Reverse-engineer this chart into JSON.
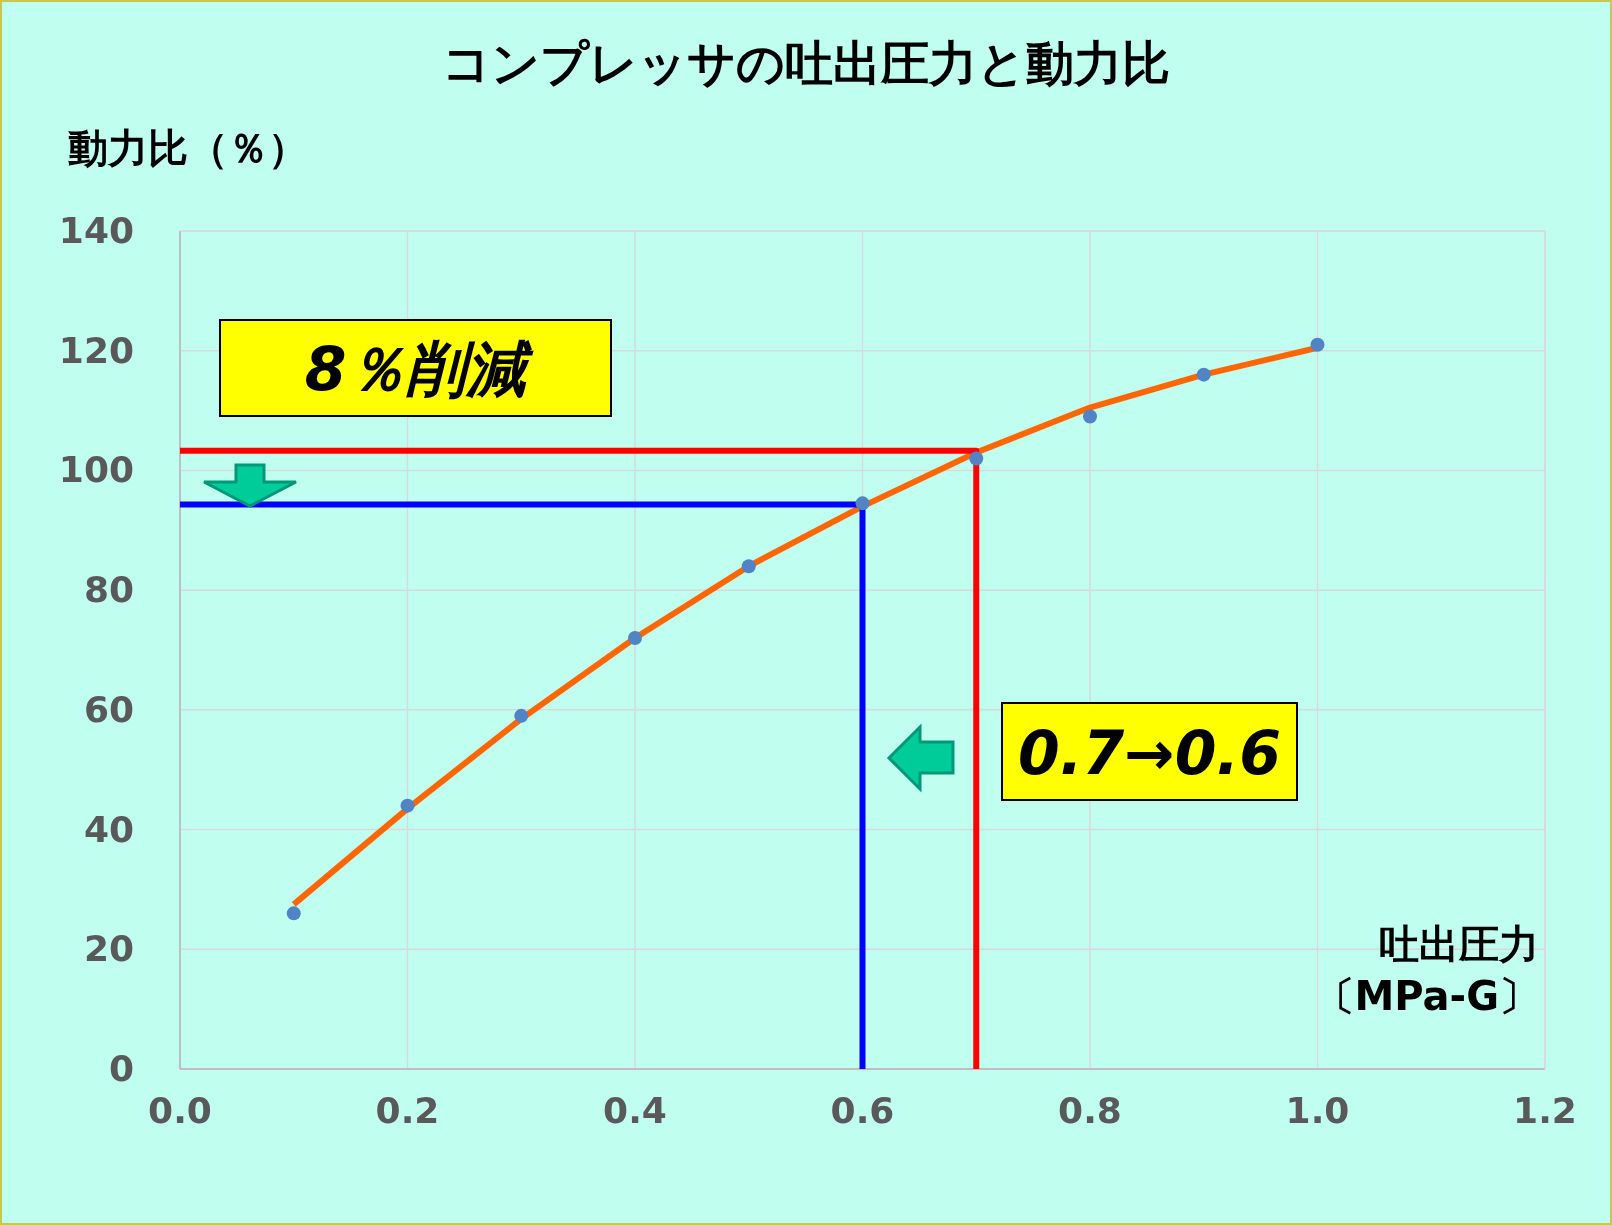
{
  "chart_data": {
    "type": "scatter",
    "title": "コンプレッサの吐出圧力と動力比",
    "ylabel": "動力比（％）",
    "xlabel": "吐出圧力〔MPa‐G〕",
    "xlim": [
      0,
      1.2
    ],
    "ylim": [
      0,
      140
    ],
    "xticks": [
      {
        "value": 0,
        "label": "0.0"
      },
      0.2,
      0.4,
      0.6,
      0.8,
      {
        "value": 1,
        "label": "1.0"
      },
      1.2
    ],
    "yticks": [
      0,
      20,
      40,
      60,
      80,
      100,
      120,
      140
    ],
    "grid": true,
    "marker": "circle",
    "series": [
      {
        "color": "#5283c4",
        "x": [
          0.1,
          0.2,
          0.3,
          0.4,
          0.5,
          0.6,
          0.7,
          0.8,
          0.9,
          1.0
        ],
        "values": [
          26,
          44,
          59,
          72,
          84,
          94.5,
          102,
          109,
          116,
          121
        ]
      },
      {
        "type": "line",
        "marker": "none",
        "color": "#ff6600",
        "x": [
          0.1,
          0.2,
          0.3,
          0.4,
          0.5,
          0.6,
          0.7,
          0.8,
          0.9,
          1.0
        ],
        "values": [
          27.5,
          43.5,
          58.5,
          72,
          84,
          94,
          103,
          110.5,
          116,
          120.5
        ]
      },
      {
        "type": "line",
        "marker": "none",
        "color": "#ff0000",
        "x": [
          0,
          0.7,
          0.7
        ],
        "values": [
          103.3,
          103.3,
          0
        ]
      },
      {
        "type": "line",
        "marker": "none",
        "color": "#0000ff",
        "x": [
          0,
          0.6,
          0.6
        ],
        "values": [
          94.3,
          94.3,
          0
        ]
      }
    ],
    "annotations": [
      "8％削減",
      "0.7→0.6"
    ]
  }
}
